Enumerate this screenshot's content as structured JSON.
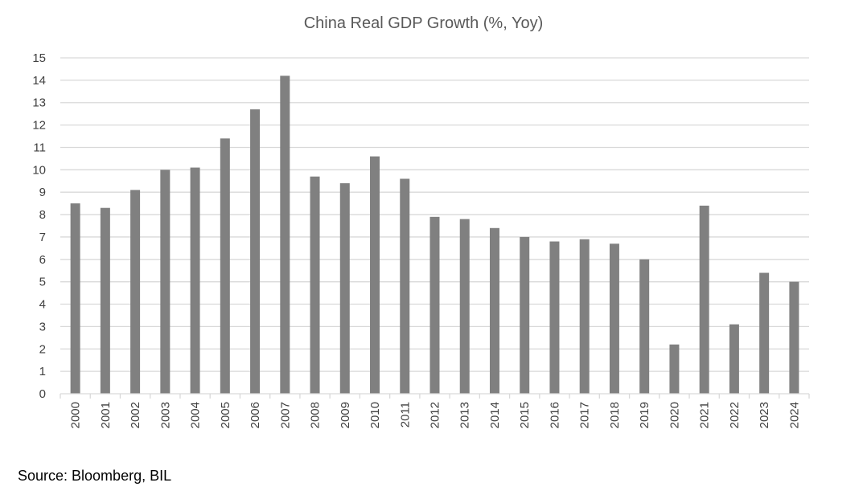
{
  "chart_data": {
    "type": "bar",
    "title": "China Real GDP Growth (%, Yoy)",
    "xlabel": "",
    "ylabel": "",
    "categories": [
      "2000",
      "2001",
      "2002",
      "2003",
      "2004",
      "2005",
      "2006",
      "2007",
      "2008",
      "2009",
      "2010",
      "2011",
      "2012",
      "2013",
      "2014",
      "2015",
      "2016",
      "2017",
      "2018",
      "2019",
      "2020",
      "2021",
      "2022",
      "2023",
      "2024"
    ],
    "values": [
      8.5,
      8.3,
      9.1,
      10.0,
      10.1,
      11.4,
      12.7,
      14.2,
      9.7,
      9.4,
      10.6,
      9.6,
      7.9,
      7.8,
      7.4,
      7.0,
      6.8,
      6.9,
      6.7,
      6.0,
      2.2,
      8.4,
      3.1,
      5.4,
      5.0
    ],
    "ylim": [
      0,
      15
    ],
    "yticks": [
      0,
      1,
      2,
      3,
      4,
      5,
      6,
      7,
      8,
      9,
      10,
      11,
      12,
      13,
      14,
      15
    ],
    "grid": true,
    "bar_color": "#808080",
    "grid_color": "#d9d9d9"
  },
  "source": "Source: Bloomberg, BIL"
}
